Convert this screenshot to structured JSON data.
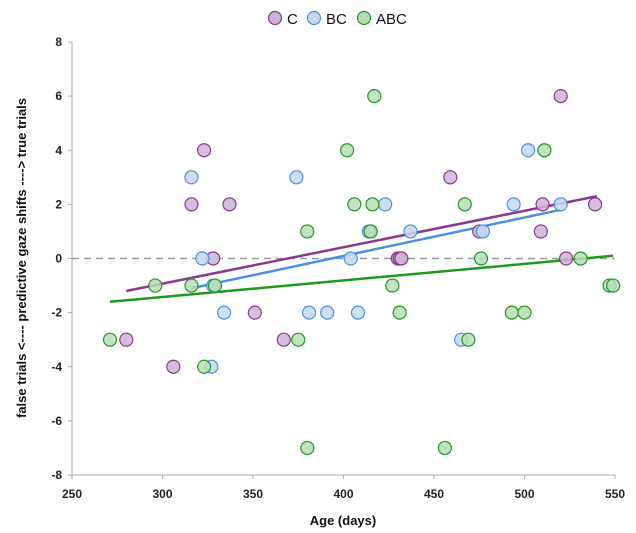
{
  "chart_data": {
    "type": "scatter",
    "title": "",
    "xlabel": "Age (days)",
    "ylabel": "false trials <---- predictive gaze shifts ----> true trials",
    "xlim": [
      250,
      550
    ],
    "ylim": [
      -8,
      8
    ],
    "x_ticks": [
      "250",
      "300",
      "350",
      "400",
      "450",
      "500",
      "550"
    ],
    "y_ticks": [
      "-8",
      "-6",
      "-4",
      "-2",
      "0",
      "2",
      "4",
      "6",
      "8"
    ],
    "grid": false,
    "legend_position": "top",
    "reference_line": {
      "y": 0,
      "style": "dashed",
      "color": "#999999"
    },
    "series": [
      {
        "name": "C",
        "color": "#8b3a8b",
        "fill": "#cfb3d8",
        "points": [
          [
            280,
            -3
          ],
          [
            306,
            -4
          ],
          [
            316,
            2
          ],
          [
            323,
            4
          ],
          [
            328,
            0
          ],
          [
            337,
            2
          ],
          [
            351,
            -2
          ],
          [
            367,
            -3
          ],
          [
            415,
            1
          ],
          [
            430,
            0
          ],
          [
            431,
            0
          ],
          [
            432,
            0
          ],
          [
            459,
            3
          ],
          [
            475,
            1
          ],
          [
            509,
            1
          ],
          [
            510,
            2
          ],
          [
            520,
            6
          ],
          [
            523,
            0
          ],
          [
            539,
            2
          ]
        ],
        "trend": {
          "x": [
            280,
            540
          ],
          "y": [
            -1.2,
            2.3
          ]
        }
      },
      {
        "name": "BC",
        "color": "#4a90e2",
        "fill": "#c7d9ef",
        "points": [
          [
            316,
            3
          ],
          [
            322,
            0
          ],
          [
            327,
            -4
          ],
          [
            328,
            -1
          ],
          [
            334,
            -2
          ],
          [
            374,
            3
          ],
          [
            381,
            -2
          ],
          [
            391,
            -2
          ],
          [
            404,
            0
          ],
          [
            408,
            -2
          ],
          [
            414,
            1
          ],
          [
            423,
            2
          ],
          [
            437,
            1
          ],
          [
            465,
            -3
          ],
          [
            477,
            1
          ],
          [
            494,
            2
          ],
          [
            502,
            4
          ],
          [
            520,
            2
          ]
        ],
        "trend": {
          "x": [
            316,
            520
          ],
          "y": [
            -1.1,
            1.8
          ]
        }
      },
      {
        "name": "ABC",
        "color": "#1e9a1e",
        "fill": "#b8dcb8",
        "points": [
          [
            271,
            -3
          ],
          [
            296,
            -1
          ],
          [
            316,
            -1
          ],
          [
            323,
            -4
          ],
          [
            329,
            -1
          ],
          [
            375,
            -3
          ],
          [
            380,
            1
          ],
          [
            380,
            -7
          ],
          [
            402,
            4
          ],
          [
            406,
            2
          ],
          [
            415,
            1
          ],
          [
            416,
            2
          ],
          [
            417,
            6
          ],
          [
            427,
            -1
          ],
          [
            431,
            -2
          ],
          [
            456,
            -7
          ],
          [
            467,
            2
          ],
          [
            469,
            -3
          ],
          [
            476,
            0
          ],
          [
            493,
            -2
          ],
          [
            500,
            -2
          ],
          [
            511,
            4
          ],
          [
            531,
            0
          ],
          [
            547,
            -1
          ],
          [
            549,
            -1
          ]
        ],
        "trend": {
          "x": [
            271,
            549
          ],
          "y": [
            -1.6,
            0.1
          ]
        }
      }
    ]
  }
}
